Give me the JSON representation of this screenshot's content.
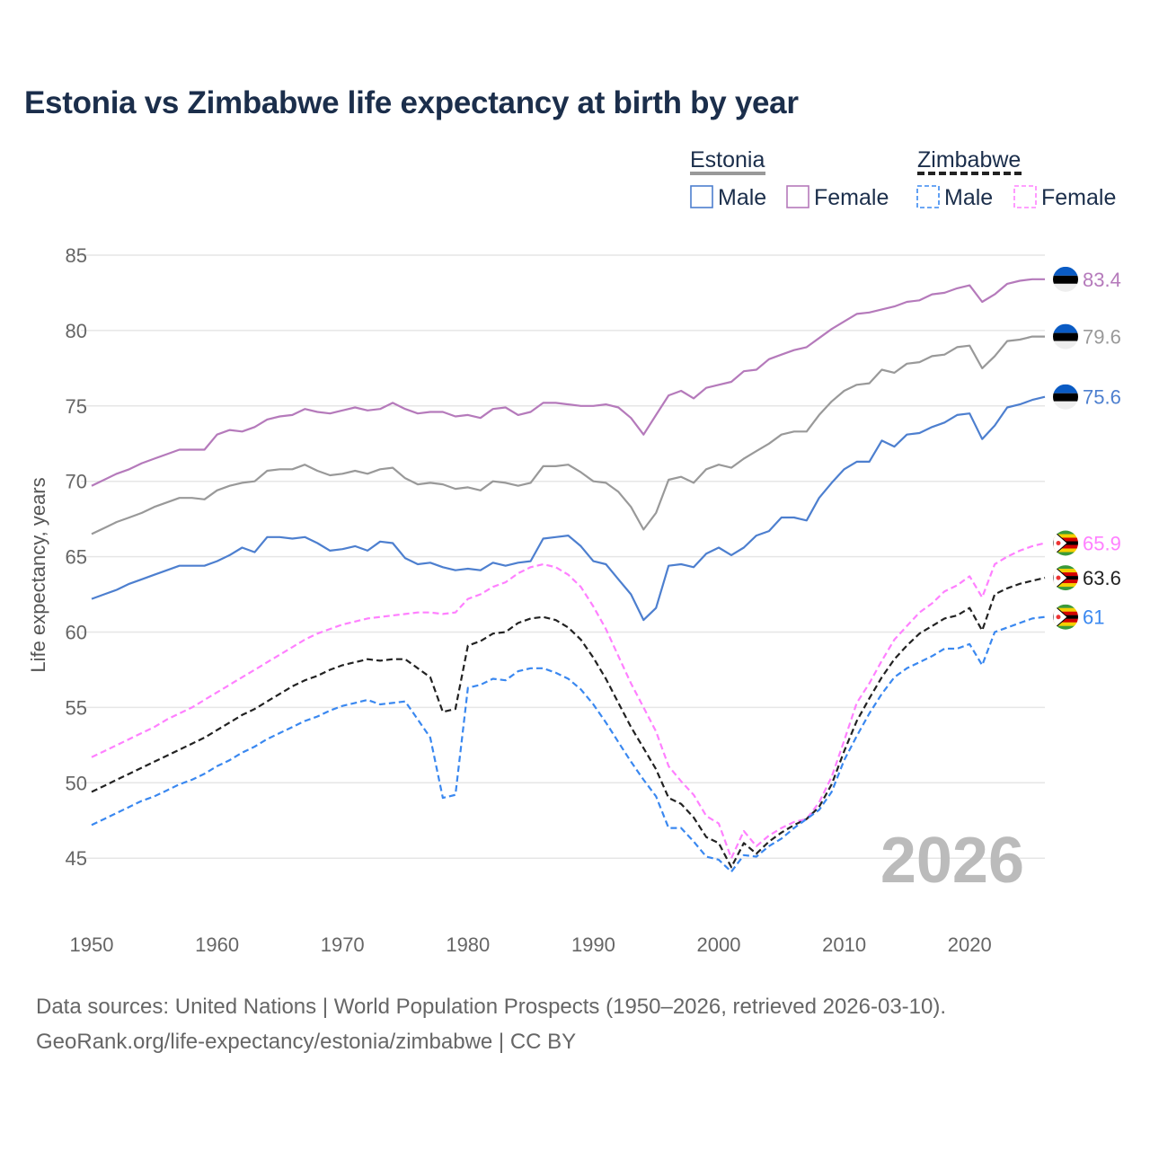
{
  "title": "Estonia vs Zimbabwe life expectancy at birth by year",
  "legend": {
    "groups": [
      {
        "name": "Estonia",
        "color": "#999999",
        "items": [
          "Male",
          "Female"
        ]
      },
      {
        "name": "Zimbabwe",
        "color": "#222222",
        "items": [
          "Male",
          "Female"
        ]
      }
    ]
  },
  "watermark_year": "2026",
  "sources": [
    "Data sources: United Nations | World Population Prospects (1950–2026, retrieved 2026-03-10).",
    "GeoRank.org/life-expectancy/estonia/zimbabwe | CC BY"
  ],
  "chart_data": {
    "type": "line",
    "title": "Estonia vs Zimbabwe life expectancy at birth by year",
    "xlabel": "",
    "ylabel": "Life expectancy, years",
    "xlim": [
      1950,
      2026
    ],
    "ylim": [
      42,
      86
    ],
    "xticks": [
      1950,
      1960,
      1970,
      1980,
      1990,
      2000,
      2010,
      2020
    ],
    "yticks": [
      45,
      50,
      55,
      60,
      65,
      70,
      75,
      80,
      85
    ],
    "grid": true,
    "x_start": 1950,
    "series": [
      {
        "name": "Estonia Female",
        "color": "#b57abb",
        "dashed": false,
        "end_label": "83.4",
        "flag": "estonia",
        "values": [
          69.7,
          70.1,
          70.5,
          70.8,
          71.2,
          71.5,
          71.8,
          72.1,
          72.1,
          72.1,
          73.1,
          73.4,
          73.3,
          73.6,
          74.1,
          74.3,
          74.4,
          74.8,
          74.6,
          74.5,
          74.7,
          74.9,
          74.7,
          74.8,
          75.2,
          74.8,
          74.5,
          74.6,
          74.6,
          74.3,
          74.4,
          74.2,
          74.8,
          74.9,
          74.4,
          74.6,
          75.2,
          75.2,
          75.1,
          75.0,
          75.0,
          75.1,
          74.9,
          74.2,
          73.1,
          74.4,
          75.7,
          76.0,
          75.5,
          76.2,
          76.4,
          76.6,
          77.3,
          77.4,
          78.1,
          78.4,
          78.7,
          78.9,
          79.5,
          80.1,
          80.6,
          81.1,
          81.2,
          81.4,
          81.6,
          81.9,
          82.0,
          82.4,
          82.5,
          82.8,
          83.0,
          81.9,
          82.4,
          83.1,
          83.3,
          83.4,
          83.4
        ]
      },
      {
        "name": "Estonia Total",
        "color": "#999999",
        "dashed": false,
        "end_label": "79.6",
        "flag": "estonia",
        "values": [
          66.5,
          66.9,
          67.3,
          67.6,
          67.9,
          68.3,
          68.6,
          68.9,
          68.9,
          68.8,
          69.4,
          69.7,
          69.9,
          70.0,
          70.7,
          70.8,
          70.8,
          71.1,
          70.7,
          70.4,
          70.5,
          70.7,
          70.5,
          70.8,
          70.9,
          70.2,
          69.8,
          69.9,
          69.8,
          69.5,
          69.6,
          69.4,
          70.0,
          69.9,
          69.7,
          69.9,
          71.0,
          71.0,
          71.1,
          70.6,
          70.0,
          69.9,
          69.3,
          68.3,
          66.8,
          67.9,
          70.1,
          70.3,
          69.9,
          70.8,
          71.1,
          70.9,
          71.5,
          72.0,
          72.5,
          73.1,
          73.3,
          73.3,
          74.4,
          75.3,
          76.0,
          76.4,
          76.5,
          77.4,
          77.2,
          77.8,
          77.9,
          78.3,
          78.4,
          78.9,
          79.0,
          77.5,
          78.3,
          79.3,
          79.4,
          79.6,
          79.6
        ]
      },
      {
        "name": "Estonia Male",
        "color": "#4d7fcf",
        "dashed": false,
        "end_label": "75.6",
        "flag": "estonia",
        "values": [
          62.2,
          62.5,
          62.8,
          63.2,
          63.5,
          63.8,
          64.1,
          64.4,
          64.4,
          64.4,
          64.7,
          65.1,
          65.6,
          65.3,
          66.3,
          66.3,
          66.2,
          66.3,
          65.9,
          65.4,
          65.5,
          65.7,
          65.4,
          66.0,
          65.9,
          64.9,
          64.5,
          64.6,
          64.3,
          64.1,
          64.2,
          64.1,
          64.6,
          64.4,
          64.6,
          64.7,
          66.2,
          66.3,
          66.4,
          65.7,
          64.7,
          64.5,
          63.5,
          62.5,
          60.8,
          61.6,
          64.4,
          64.5,
          64.3,
          65.2,
          65.6,
          65.1,
          65.6,
          66.4,
          66.7,
          67.6,
          67.6,
          67.4,
          68.9,
          69.9,
          70.8,
          71.3,
          71.3,
          72.7,
          72.3,
          73.1,
          73.2,
          73.6,
          73.9,
          74.4,
          74.5,
          72.8,
          73.7,
          74.9,
          75.1,
          75.4,
          75.6
        ]
      },
      {
        "name": "Zimbabwe Female",
        "color": "#ff80ff",
        "dashed": true,
        "end_label": "65.9",
        "flag": "zimbabwe",
        "values": [
          51.7,
          52.1,
          52.5,
          52.9,
          53.3,
          53.7,
          54.2,
          54.6,
          55.0,
          55.5,
          56.0,
          56.5,
          57.0,
          57.5,
          58.0,
          58.5,
          59.0,
          59.5,
          59.9,
          60.2,
          60.5,
          60.7,
          60.9,
          61.0,
          61.1,
          61.2,
          61.3,
          61.3,
          61.2,
          61.3,
          62.2,
          62.5,
          63.0,
          63.3,
          63.9,
          64.3,
          64.5,
          64.3,
          63.8,
          63.0,
          61.7,
          60.2,
          58.4,
          56.6,
          55.0,
          53.4,
          51.1,
          50.1,
          49.2,
          47.8,
          47.3,
          45.0,
          46.8,
          45.8,
          46.5,
          47.0,
          47.4,
          47.6,
          48.7,
          50.4,
          52.8,
          55.3,
          56.6,
          58.1,
          59.5,
          60.4,
          61.3,
          61.9,
          62.7,
          63.1,
          63.7,
          62.3,
          64.5,
          65.0,
          65.4,
          65.7,
          65.9
        ]
      },
      {
        "name": "Zimbabwe Total",
        "color": "#222222",
        "dashed": true,
        "end_label": "63.6",
        "flag": "zimbabwe",
        "values": [
          49.4,
          49.8,
          50.2,
          50.6,
          51.0,
          51.4,
          51.8,
          52.2,
          52.6,
          53.0,
          53.5,
          54.0,
          54.5,
          54.9,
          55.4,
          55.9,
          56.4,
          56.8,
          57.1,
          57.5,
          57.8,
          58.0,
          58.2,
          58.1,
          58.2,
          58.2,
          57.6,
          57.0,
          54.7,
          54.9,
          59.1,
          59.4,
          59.9,
          60.0,
          60.6,
          60.9,
          61.0,
          60.8,
          60.3,
          59.5,
          58.3,
          56.9,
          55.3,
          53.7,
          52.3,
          50.9,
          49.0,
          48.6,
          47.7,
          46.4,
          46.0,
          44.4,
          46.0,
          45.3,
          46.1,
          46.7,
          47.2,
          47.6,
          48.4,
          49.9,
          52.1,
          54.1,
          55.6,
          57.0,
          58.2,
          59.1,
          59.9,
          60.4,
          60.9,
          61.1,
          61.6,
          60.1,
          62.5,
          62.9,
          63.2,
          63.4,
          63.6
        ]
      },
      {
        "name": "Zimbabwe Male",
        "color": "#3a88f0",
        "dashed": true,
        "end_label": "61",
        "flag": "zimbabwe",
        "values": [
          47.2,
          47.6,
          48.0,
          48.4,
          48.8,
          49.1,
          49.5,
          49.9,
          50.2,
          50.6,
          51.1,
          51.5,
          52.0,
          52.4,
          52.9,
          53.3,
          53.7,
          54.1,
          54.4,
          54.8,
          55.1,
          55.3,
          55.5,
          55.2,
          55.3,
          55.4,
          54.2,
          53.0,
          49.0,
          49.2,
          56.3,
          56.5,
          56.9,
          56.8,
          57.4,
          57.6,
          57.6,
          57.3,
          56.9,
          56.2,
          55.2,
          54.0,
          52.7,
          51.4,
          50.2,
          49.1,
          47.0,
          47.0,
          46.1,
          45.1,
          44.9,
          44.1,
          45.2,
          45.1,
          45.8,
          46.3,
          47.0,
          47.6,
          48.2,
          49.4,
          51.5,
          53.1,
          54.6,
          55.9,
          57.0,
          57.6,
          58.0,
          58.4,
          58.9,
          58.9,
          59.2,
          57.8,
          60.0,
          60.3,
          60.6,
          60.9,
          61.0
        ]
      }
    ]
  }
}
